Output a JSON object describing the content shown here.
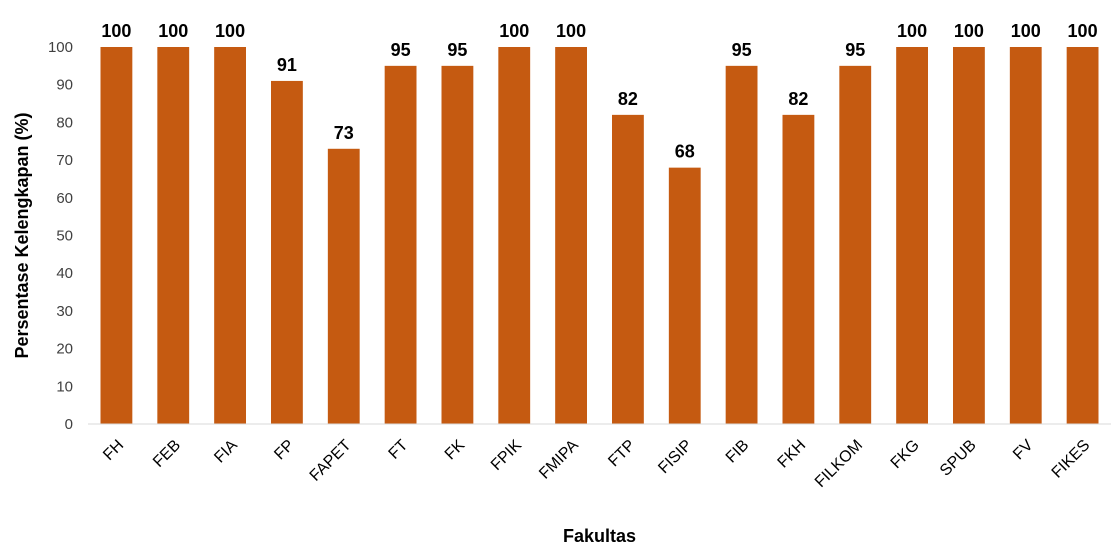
{
  "chart_data": {
    "type": "bar",
    "title": "",
    "xlabel": "Fakultas",
    "ylabel": "Persentase Kelengkapan (%)",
    "categories": [
      "FH",
      "FEB",
      "FIA",
      "FP",
      "FAPET",
      "FT",
      "FK",
      "FPIK",
      "FMIPA",
      "FTP",
      "FISIP",
      "FIB",
      "FKH",
      "FILKOM",
      "FKG",
      "SPUB",
      "FV",
      "FIKES"
    ],
    "values": [
      100,
      100,
      100,
      91,
      73,
      95,
      95,
      100,
      100,
      82,
      68,
      95,
      82,
      95,
      100,
      100,
      100,
      100
    ],
    "value_labels": [
      "100",
      "100",
      "100",
      "91",
      "73",
      "95",
      "95",
      "100",
      "100",
      "82",
      "68",
      "95",
      "82",
      "95",
      "100",
      "100",
      "100",
      "100"
    ],
    "ylim": [
      0,
      100
    ],
    "yticks": [
      0,
      10,
      20,
      30,
      40,
      50,
      60,
      70,
      80,
      90,
      100
    ],
    "grid": false,
    "legend": "none",
    "bar_color": "#C55A11"
  }
}
